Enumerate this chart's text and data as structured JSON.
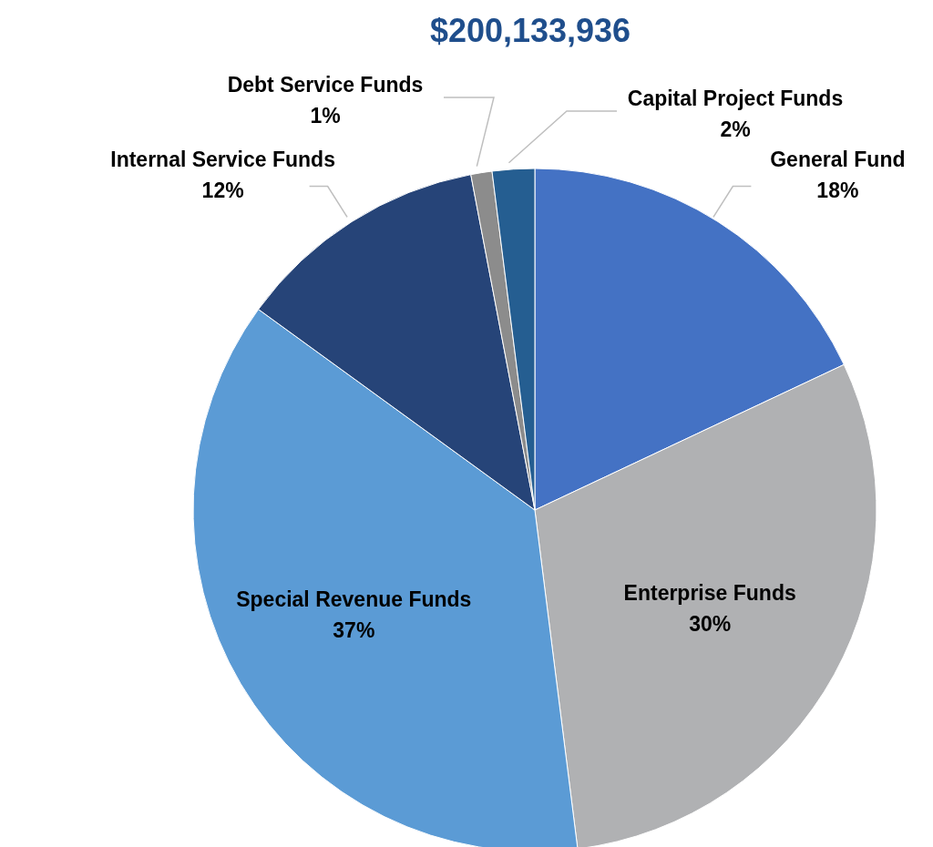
{
  "chart_data": {
    "type": "pie",
    "title": "$200,133,936",
    "categories": [
      "General Fund",
      "Enterprise Funds",
      "Special Revenue Funds",
      "Internal Service Funds",
      "Debt Service Funds",
      "Capital Project Funds"
    ],
    "values": [
      18,
      30,
      37,
      12,
      1,
      2
    ],
    "colors": [
      "#4472c4",
      "#b0b1b3",
      "#5b9bd5",
      "#264478",
      "#8c8c8c",
      "#255e91"
    ],
    "value_labels": [
      "18%",
      "30%",
      "37%",
      "12%",
      "1%",
      "2%"
    ],
    "legend": false
  }
}
